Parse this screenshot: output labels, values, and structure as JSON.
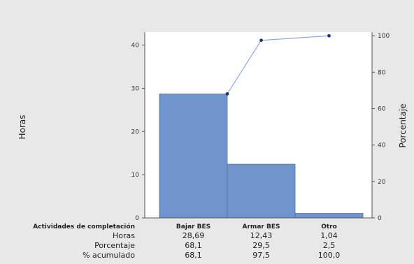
{
  "chart_data": {
    "type": "bar",
    "categories": [
      "Bajar BES",
      "Armar BES",
      "Otro"
    ],
    "series": [
      {
        "name": "Horas",
        "values": [
          28.69,
          12.43,
          1.04
        ]
      },
      {
        "name": "% acumulado",
        "values": [
          68.1,
          97.5,
          100.0
        ]
      }
    ],
    "ylabel": "Horas",
    "ylabel_right": "Porcentaje",
    "ylim": [
      0,
      43
    ],
    "ylim_right": [
      0,
      102
    ],
    "yticks": [
      "0",
      "10",
      "20",
      "30",
      "40"
    ],
    "yticks_right": [
      "0",
      "20",
      "40",
      "60",
      "80",
      "100"
    ],
    "bar_color": "#6f95cf",
    "line_color": "#8fa8e0",
    "point_color": "#23308a",
    "grid": false,
    "table": {
      "row_title": "Actividades de completación",
      "rows": [
        {
          "label": "Horas",
          "values": [
            "28,69",
            "12,43",
            "1,04"
          ]
        },
        {
          "label": "Porcentaje",
          "values": [
            "68,1",
            "29,5",
            "2,5"
          ]
        },
        {
          "label": "% acumulado",
          "values": [
            "68,1",
            "97,5",
            "100,0"
          ]
        }
      ]
    }
  }
}
